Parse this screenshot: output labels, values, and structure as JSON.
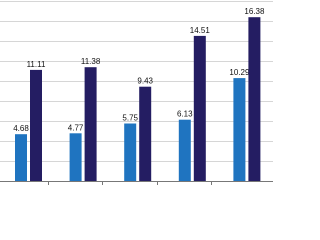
{
  "chart_data": {
    "type": "bar",
    "categories": [
      null,
      null,
      null,
      null,
      null
    ],
    "series": [
      {
        "color": "#1f74c0",
        "values": [
          4.68,
          4.77,
          5.75,
          6.13,
          10.29
        ]
      },
      {
        "color": "#241d62",
        "values": [
          11.11,
          11.38,
          9.43,
          14.51,
          16.38
        ]
      }
    ],
    "ylim": [
      0,
      18
    ],
    "yticks": [
      0,
      2,
      4,
      6,
      8,
      10,
      12,
      14,
      16,
      18
    ],
    "grid": true
  }
}
